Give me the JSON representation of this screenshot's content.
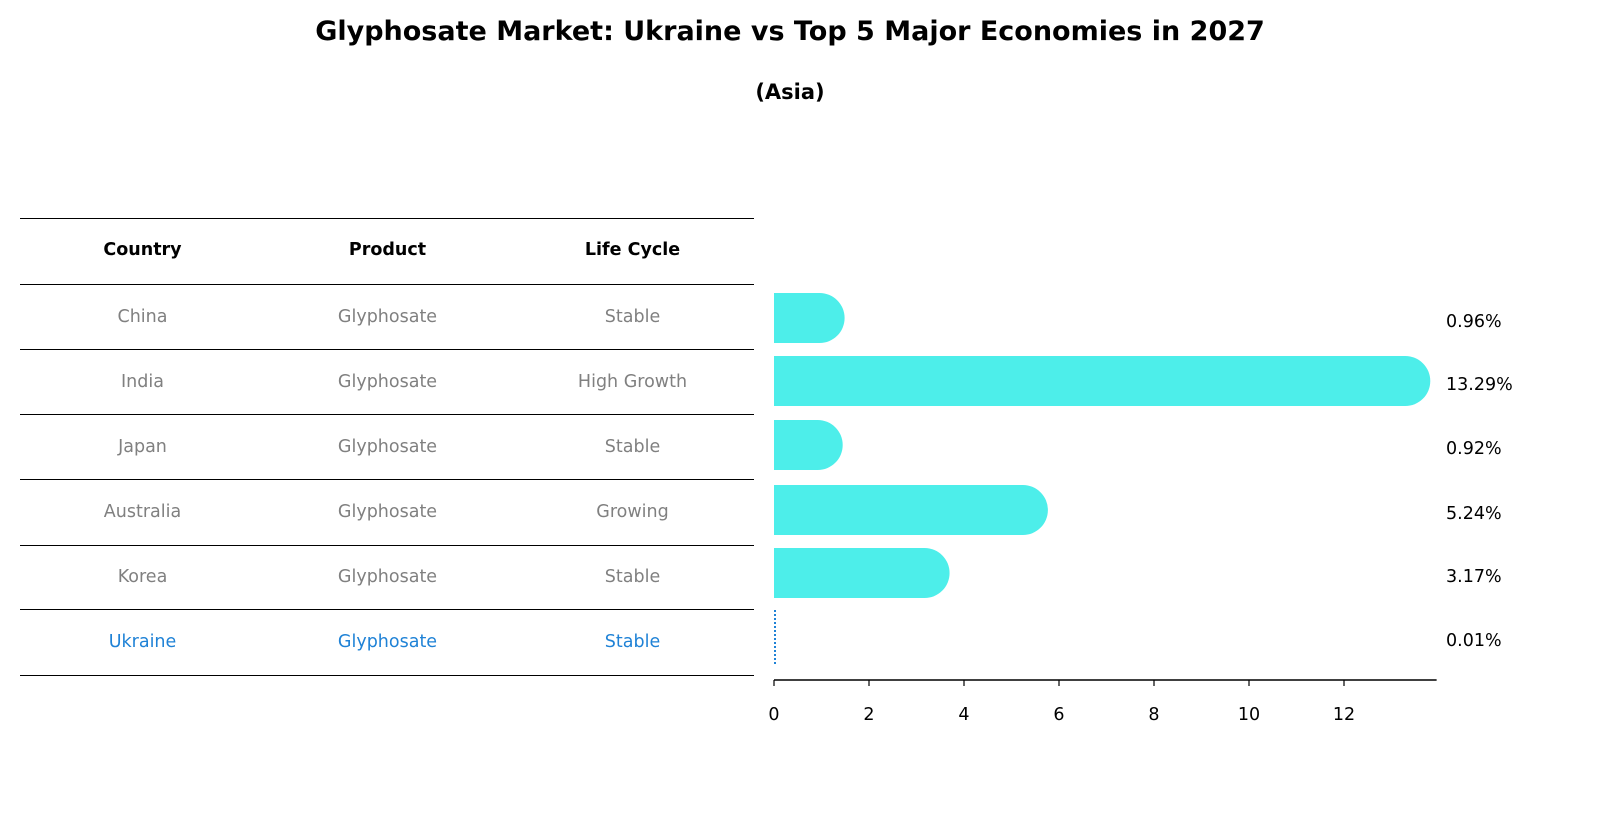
{
  "title": "Glyphosate Market: Ukraine vs Top 5 Major Economies in 2027",
  "subtitle": "(Asia)",
  "table": {
    "headers": [
      "Country",
      "Product",
      "Life Cycle"
    ],
    "rows": [
      [
        "China",
        "Glyphosate",
        "Stable"
      ],
      [
        "India",
        "Glyphosate",
        "High Growth"
      ],
      [
        "Japan",
        "Glyphosate",
        "Stable"
      ],
      [
        "Australia",
        "Glyphosate",
        "Growing"
      ],
      [
        "Korea",
        "Glyphosate",
        "Stable"
      ],
      [
        "Ukraine",
        "Glyphosate",
        "Stable"
      ]
    ],
    "highlight_row": 5
  },
  "chart_data": {
    "type": "bar",
    "orientation": "horizontal",
    "categories": [
      "China",
      "India",
      "Japan",
      "Australia",
      "Korea",
      "Ukraine"
    ],
    "values": [
      0.96,
      13.29,
      0.92,
      5.24,
      3.17,
      0.01
    ],
    "labels": [
      "0.96%",
      "13.29%",
      "0.92%",
      "5.24%",
      "3.17%",
      "0.01%"
    ],
    "xticks": [
      0,
      2,
      4,
      6,
      8,
      10,
      12
    ],
    "xlim": [
      0,
      13.95
    ],
    "bar_color": "#4deeea",
    "highlight_color": "#1f82d6",
    "grid": false
  }
}
